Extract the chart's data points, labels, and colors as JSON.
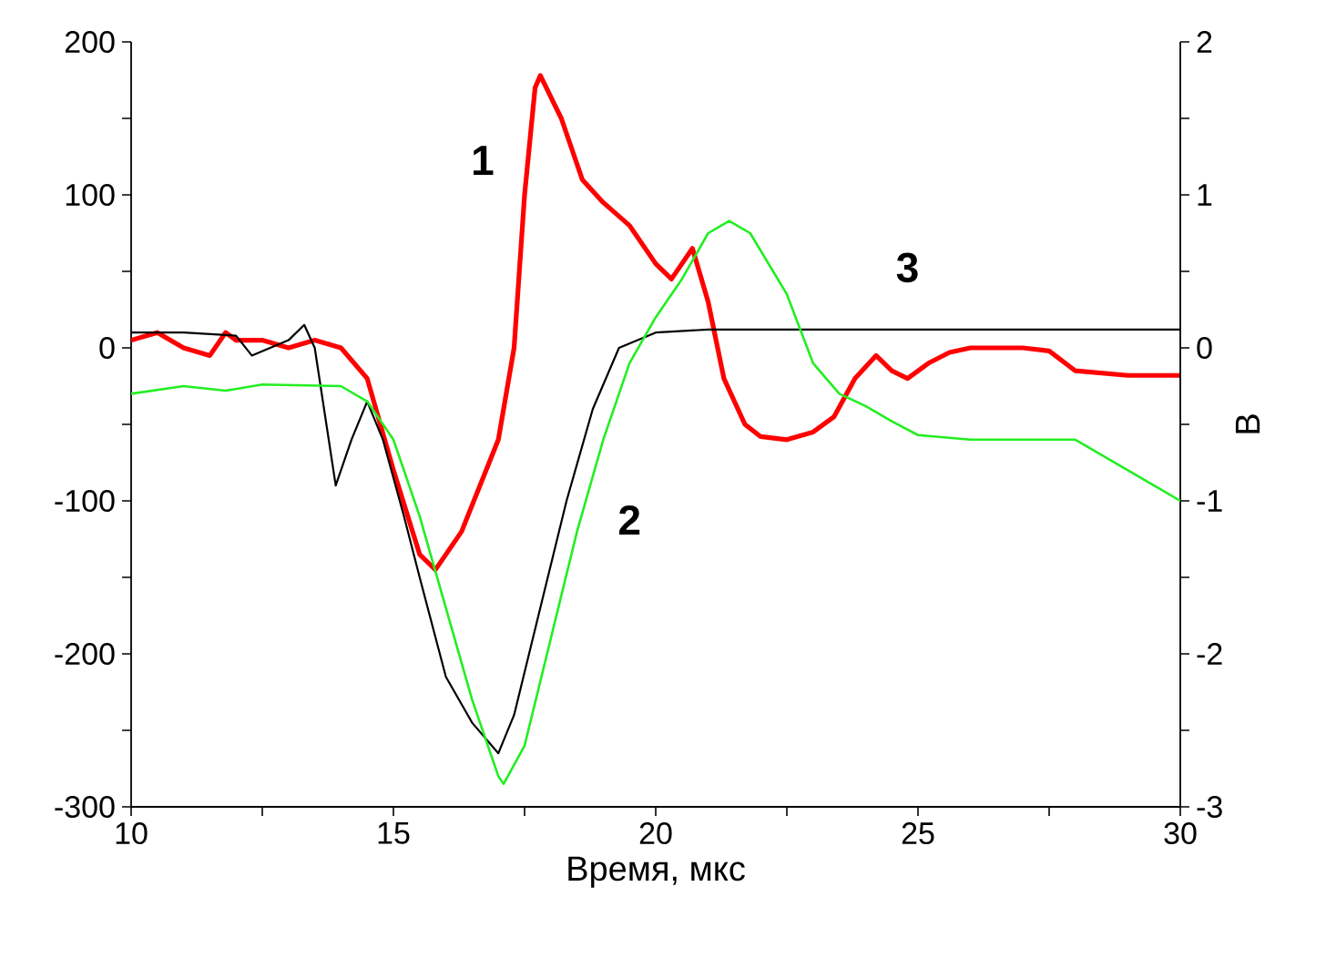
{
  "chart_data": {
    "type": "line",
    "xlabel": "Время, мкс",
    "y2label": "В",
    "xlim": [
      10,
      30
    ],
    "xticks": [
      10,
      {
        "value": 12.5,
        "label": null
      },
      15,
      {
        "value": 17.5,
        "label": null
      },
      20,
      {
        "value": 22.5,
        "label": null
      },
      25,
      {
        "value": 27.5,
        "label": null
      },
      30
    ],
    "ylim": [
      -300,
      200
    ],
    "yticks": [
      -300,
      {
        "value": -250,
        "label": null
      },
      -200,
      {
        "value": -150,
        "label": null
      },
      -100,
      {
        "value": -50,
        "label": null
      },
      0,
      {
        "value": 50,
        "label": null
      },
      100,
      {
        "value": 150,
        "label": null
      },
      200
    ],
    "y2lim": [
      -3,
      2
    ],
    "y2ticks": [
      -3,
      {
        "value": -2.5,
        "label": null
      },
      -2,
      {
        "value": -1.5,
        "label": null
      },
      -1,
      {
        "value": -0.5,
        "label": null
      },
      0,
      {
        "value": 0.5,
        "label": null
      },
      1,
      {
        "value": 1.5,
        "label": null
      },
      2
    ],
    "series": [
      {
        "color": "#ff0000",
        "x": [
          10,
          10.5,
          11,
          11.5,
          11.8,
          12,
          12.5,
          13,
          13.5,
          14,
          14.5,
          15,
          15.5,
          15.8,
          16.3,
          17,
          17.3,
          17.5,
          17.7,
          17.8,
          18.2,
          18.6,
          19,
          19.5,
          20,
          20.3,
          20.7,
          21,
          21.3,
          21.7,
          22,
          22.5,
          23,
          23.4,
          23.8,
          24.2,
          24.5,
          24.8,
          25.2,
          25.6,
          26,
          27,
          27.5,
          28,
          29,
          30
        ],
        "values": [
          5,
          10,
          0,
          -5,
          10,
          5,
          5,
          0,
          5,
          0,
          -20,
          -80,
          -135,
          -145,
          -120,
          -60,
          0,
          100,
          170,
          178,
          150,
          110,
          95,
          80,
          55,
          45,
          65,
          30,
          -20,
          -50,
          -58,
          -60,
          -55,
          -45,
          -20,
          -5,
          -15,
          -20,
          -10,
          -3,
          0,
          0,
          -2,
          -15,
          -18,
          -18
        ]
      },
      {
        "color": "#22ee22",
        "axis": "y2",
        "x": [
          10,
          11,
          11.8,
          12.5,
          14,
          14.5,
          15,
          15.5,
          16,
          16.5,
          17,
          17.1,
          17.5,
          18,
          18.5,
          19,
          19.5,
          20,
          20.5,
          21,
          21.4,
          21.8,
          22.5,
          23,
          23.5,
          24,
          24.5,
          25,
          26,
          27,
          28,
          29,
          30
        ],
        "values": [
          -0.3,
          -0.25,
          -0.28,
          -0.24,
          -0.25,
          -0.35,
          -0.6,
          -1.1,
          -1.7,
          -2.3,
          -2.8,
          -2.85,
          -2.6,
          -1.9,
          -1.2,
          -0.6,
          -0.1,
          0.2,
          0.45,
          0.75,
          0.83,
          0.75,
          0.35,
          -0.1,
          -0.3,
          -0.38,
          -0.48,
          -0.57,
          -0.6,
          -0.6,
          -0.6,
          -0.8,
          -1.0
        ]
      },
      {
        "color": "#000000",
        "x": [
          10,
          11,
          12,
          12.3,
          13,
          13.3,
          13.5,
          13.9,
          14.2,
          14.5,
          14.8,
          15.2,
          15.5,
          16,
          16.5,
          17,
          17.3,
          17.8,
          18.3,
          18.8,
          19.3,
          20,
          21,
          30
        ],
        "values": [
          10,
          10,
          8,
          -5,
          5,
          15,
          0,
          -90,
          -60,
          -35,
          -60,
          -110,
          -150,
          -215,
          -245,
          -265,
          -240,
          -170,
          -100,
          -40,
          0,
          10,
          12,
          12
        ]
      }
    ],
    "annotations": [
      "1",
      "2",
      "3"
    ]
  }
}
